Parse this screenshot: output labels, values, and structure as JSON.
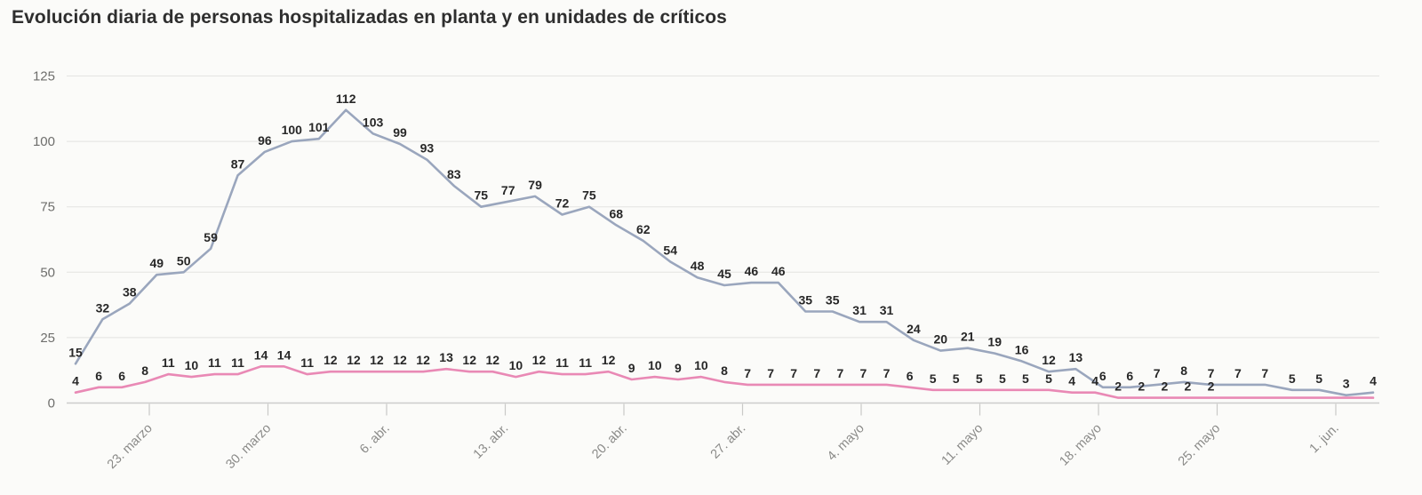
{
  "chart_data": {
    "type": "line",
    "title": "Evolución diaria de personas hospitalizadas en planta y en unidades de críticos",
    "xlabel": "",
    "ylabel": "",
    "ylim": [
      0,
      125
    ],
    "y_ticks": [
      0,
      25,
      50,
      75,
      100,
      125
    ],
    "x_tick_labels": [
      "23. marzo",
      "30. marzo",
      "6. abr.",
      "13. abr.",
      "20. abr.",
      "27. abr.",
      "4. mayo",
      "11. mayo",
      "18. mayo",
      "25. mayo",
      "1. jun."
    ],
    "grid": "horizontal",
    "legend_position": "none",
    "value_labels": "shown above each point",
    "series": [
      {
        "name": "Hospitalizadas en planta",
        "color": "#9aa6bd",
        "values": [
          15,
          32,
          38,
          49,
          50,
          59,
          87,
          96,
          100,
          101,
          112,
          103,
          99,
          93,
          83,
          75,
          77,
          79,
          72,
          75,
          68,
          62,
          54,
          48,
          45,
          46,
          46,
          35,
          35,
          31,
          31,
          24,
          20,
          21,
          19,
          16,
          12,
          13,
          6,
          6,
          7,
          8,
          7,
          7,
          7,
          5,
          5,
          3,
          4
        ]
      },
      {
        "name": "En unidades de críticos",
        "color": "#e989b5",
        "values": [
          4,
          6,
          6,
          8,
          11,
          10,
          11,
          11,
          14,
          14,
          11,
          12,
          12,
          12,
          12,
          12,
          13,
          12,
          12,
          10,
          12,
          11,
          11,
          12,
          9,
          10,
          9,
          10,
          8,
          7,
          7,
          7,
          7,
          7,
          7,
          7,
          6,
          5,
          5,
          5,
          5,
          5,
          5,
          4,
          4,
          2,
          2,
          2,
          2,
          2
        ],
        "unlabeled_tail_values": [
          2,
          2,
          2,
          2,
          2,
          2,
          2
        ]
      }
    ]
  }
}
